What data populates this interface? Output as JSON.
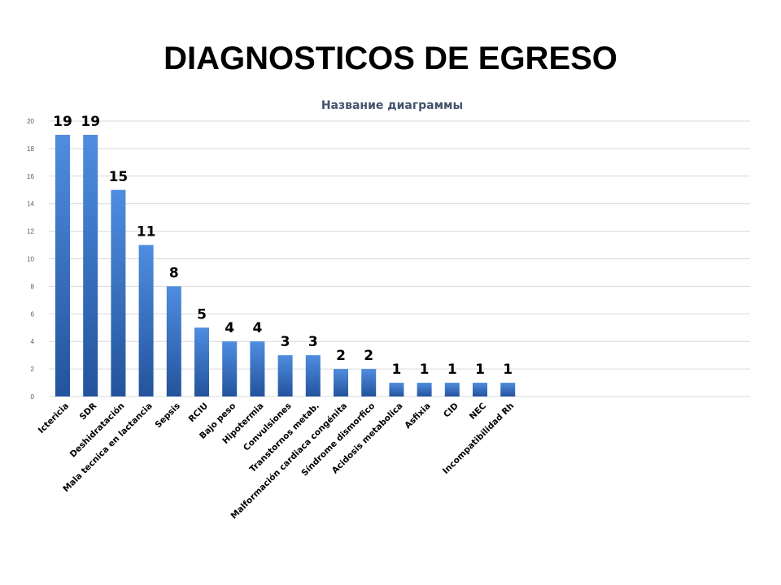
{
  "slide": {
    "title": "DIAGNOSTICOS DE EGRESO"
  },
  "colors": {
    "bar_top": "#4f8de0",
    "bar_bottom": "#23539c",
    "grid": "#d9d9d9",
    "chart_title": "#44546a"
  },
  "chart_data": {
    "type": "bar",
    "title": "Название диаграммы",
    "xlabel": "",
    "ylabel": "",
    "ylim": [
      0,
      20
    ],
    "yticks": [
      0,
      2,
      4,
      6,
      8,
      10,
      12,
      14,
      16,
      18,
      20
    ],
    "grid": true,
    "legend": "none",
    "categories": [
      "Ictericia",
      "SDR",
      "Deshidratación",
      "Mala tecnica en lactancia",
      "Sepsis",
      "RCIU",
      "Bajo peso",
      "Hipotermia",
      "Convulsiones",
      "Transtornos metab.",
      "Malformación cardiaca congénita",
      "Síndrome dismorfico",
      "Acidosis metabolica",
      "Asfixia",
      "CID",
      "NEC",
      "Incompatibilidad Rh"
    ],
    "values": [
      19,
      19,
      15,
      11,
      8,
      5,
      4,
      4,
      3,
      3,
      2,
      2,
      1,
      1,
      1,
      1,
      1
    ]
  }
}
